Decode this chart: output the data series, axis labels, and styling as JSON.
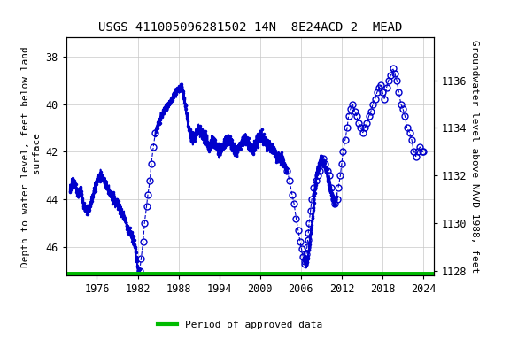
{
  "title": "USGS 411005096281502 14N  8E24ACD 2  MEAD",
  "ylabel_left": "Depth to water level, feet below land\n surface",
  "ylabel_right": "Groundwater level above NAVD 1988, feet",
  "ylim_left": [
    47.2,
    37.2
  ],
  "ylim_right": [
    1127.8,
    1137.8
  ],
  "yticks_left": [
    38.0,
    40.0,
    42.0,
    44.0,
    46.0
  ],
  "yticks_right": [
    1128.0,
    1130.0,
    1132.0,
    1134.0,
    1136.0
  ],
  "xticks": [
    1976,
    1982,
    1988,
    1994,
    2000,
    2006,
    2012,
    2018,
    2024
  ],
  "xlim": [
    1971.5,
    2025.5
  ],
  "background_color": "#ffffff",
  "plot_bg_color": "#ffffff",
  "grid_color": "#c8c8c8",
  "line_color": "#0000cc",
  "marker_color": "#0000cc",
  "approved_color": "#00bb00",
  "legend_label": "Period of approved data",
  "title_fontsize": 10,
  "axis_fontsize": 8,
  "tick_fontsize": 8.5
}
